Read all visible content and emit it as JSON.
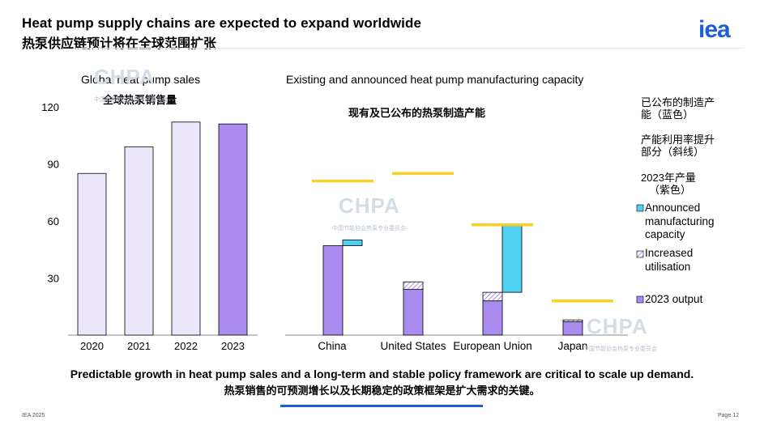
{
  "header": {
    "title": "Heat pump supply chains are expected to expand worldwide",
    "title_cn": "热泵供应链预计将在全球范围扩张",
    "logo": "iea"
  },
  "watermark": {
    "text": "CHPA",
    "sub": "中国节能协会热泵专业委员会"
  },
  "colors": {
    "sales_light": "#ece6fb",
    "sales_dark": "#a98bef",
    "output": "#a98bef",
    "announced": "#4fd0f5",
    "yellow": "#f7d12a",
    "accent_blue": "#1f5fd6"
  },
  "chart_data": [
    {
      "type": "bar",
      "title": "Global heat pump sales",
      "title_cn": "全球热泵销售量",
      "categories": [
        "2020",
        "2021",
        "2022",
        "2023"
      ],
      "values": [
        85,
        99,
        112,
        111
      ],
      "yticks": [
        "120",
        "90",
        "60",
        "30"
      ],
      "ylim": [
        0,
        120
      ]
    },
    {
      "type": "bar",
      "title": "Existing and announced heat pump manufacturing capacity",
      "title_cn": "现有及已公布的热泵制造产能",
      "categories": [
        "China",
        "United States",
        "European Union",
        "Japan"
      ],
      "ylim": [
        0,
        120
      ],
      "series": [
        {
          "name": "2023 output",
          "values": [
            47,
            24,
            18,
            7
          ]
        },
        {
          "name": "Increased utilisation",
          "values": [
            0,
            4,
            4.5,
            1
          ]
        },
        {
          "name": "Announced manufacturing capacity",
          "values": [
            3,
            0,
            36,
            0
          ]
        }
      ],
      "demand_marker_values": [
        81,
        85,
        58,
        18
      ]
    }
  ],
  "legend": {
    "notes_cn": [
      "已公布的制造产",
      "能（蓝色）",
      "产能利用率提升",
      "部分（斜线）",
      "2023年产量",
      "（紫色）"
    ],
    "announced": [
      "Announced",
      "manufacturing",
      "capacity"
    ],
    "increased": [
      "Increased",
      "utilisation"
    ],
    "output": "2023 output"
  },
  "footer": {
    "line1": "Predictable growth in heat pump sales and a long-term and stable policy framework are critical to scale up demand.",
    "line2": "热泵销售的可预测增长以及长期稳定的政策框架是扩大需求的关键。",
    "source": "IEA 2025",
    "page": "Page 12"
  }
}
